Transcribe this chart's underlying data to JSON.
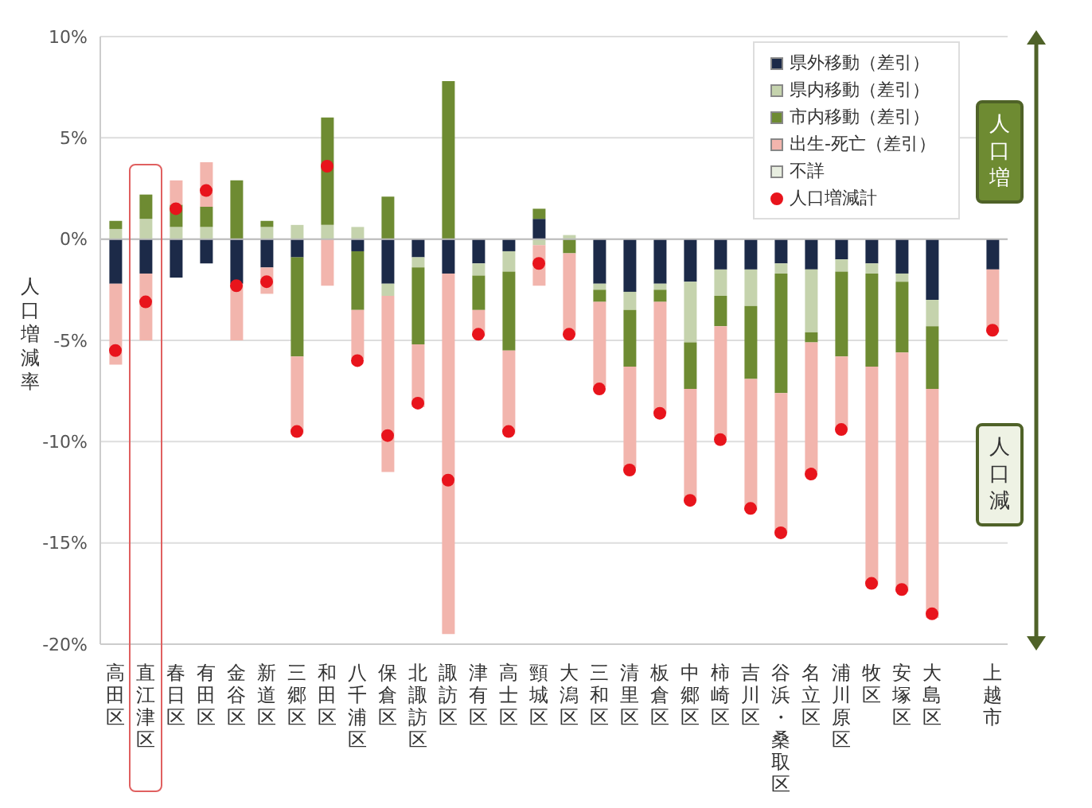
{
  "chart_data": {
    "type": "bar",
    "stacked": true,
    "ylabel": "人口増減率",
    "legend": "top right",
    "grid": "y",
    "marker": "circle",
    "ylim": [
      -20,
      10
    ],
    "yticks": [
      {
        "value": 10,
        "label": "10%"
      },
      {
        "value": 5,
        "label": "5%"
      },
      {
        "value": 0,
        "label": "0%"
      },
      {
        "value": -5,
        "label": "-5%"
      },
      {
        "value": -10,
        "label": "-10%"
      },
      {
        "value": -15,
        "label": "-15%"
      },
      {
        "value": -20,
        "label": "-20%"
      }
    ],
    "categories": [
      "高田区",
      "直江津区",
      "春日区",
      "有田区",
      "金谷区",
      "新道区",
      "三郷区",
      "和田区",
      "八千浦区",
      "保倉区",
      "北諏訪区",
      "諏訪区",
      "津有区",
      "高士区",
      "頸城区",
      "大潟区",
      "三和区",
      "清里区",
      "板倉区",
      "中郷区",
      "柿崎区",
      "吉川区",
      "谷浜・桑取区",
      "名立区",
      "浦川原区",
      "牧区",
      "安塚区",
      "大島区",
      null,
      "上越市"
    ],
    "series": [
      {
        "name": "県外移動（差引）",
        "color": "#1c2a48",
        "values": [
          -2.2,
          -1.7,
          -1.9,
          -1.2,
          -2.2,
          -1.4,
          -0.9,
          null,
          -0.6,
          -2.2,
          -0.9,
          -1.7,
          -1.2,
          -0.6,
          1.0,
          null,
          -2.2,
          -2.6,
          -2.2,
          -2.1,
          -1.5,
          -1.5,
          -1.2,
          -1.5,
          -1.0,
          -1.2,
          -1.7,
          -3.0,
          null,
          -1.5
        ]
      },
      {
        "name": "県内移動（差引）",
        "color": "#c5d3ad",
        "values": [
          0.5,
          1.0,
          0.6,
          0.6,
          null,
          0.6,
          0.7,
          0.7,
          0.6,
          -0.6,
          -0.5,
          null,
          -0.6,
          -1.0,
          -0.3,
          0.2,
          -0.3,
          -0.9,
          -0.3,
          -3.0,
          -1.3,
          -1.8,
          -0.5,
          -3.1,
          -0.6,
          -0.5,
          -0.4,
          -1.3,
          null,
          null
        ]
      },
      {
        "name": "市内移動（差引）",
        "color": "#6e8b32",
        "values": [
          0.4,
          1.2,
          1.1,
          1.0,
          2.9,
          0.3,
          -4.9,
          5.3,
          -2.9,
          2.1,
          -3.8,
          7.8,
          -1.7,
          -3.9,
          0.5,
          -0.7,
          -0.6,
          -2.8,
          -0.6,
          -2.3,
          -1.5,
          -3.6,
          -5.9,
          -0.5,
          -4.2,
          -4.6,
          -3.5,
          -3.1,
          null,
          null
        ]
      },
      {
        "name": "出生-死亡（差引）",
        "color": "#f2b5ad",
        "values": [
          -4.0,
          -3.3,
          1.2,
          2.2,
          -2.8,
          -1.3,
          -3.8,
          -2.3,
          -2.4,
          -8.7,
          -3.1,
          -17.8,
          -1.3,
          -4.1,
          -2.0,
          -4.0,
          -4.2,
          -5.0,
          -5.5,
          -5.5,
          -5.5,
          -6.5,
          -6.9,
          -6.4,
          -3.6,
          -10.8,
          -11.8,
          -11.3,
          null,
          -3.1
        ]
      },
      {
        "name": "不詳",
        "color": "#e8eee0",
        "values": [
          null,
          null,
          null,
          null,
          null,
          null,
          null,
          null,
          null,
          null,
          null,
          null,
          null,
          null,
          null,
          null,
          null,
          null,
          null,
          null,
          null,
          null,
          null,
          null,
          null,
          null,
          null,
          null,
          null,
          null
        ]
      },
      {
        "name": "人口増減計",
        "type": "scatter",
        "color": "#e8141c",
        "values": [
          -5.5,
          -3.1,
          1.5,
          2.4,
          -2.3,
          -2.1,
          -9.5,
          3.6,
          -6.0,
          -9.7,
          -8.1,
          -11.9,
          -4.7,
          -9.5,
          -1.2,
          -4.7,
          -7.4,
          -11.4,
          -8.6,
          -12.9,
          -9.9,
          -13.3,
          -14.5,
          -11.6,
          -9.4,
          -17.0,
          -17.3,
          -18.5,
          null,
          -4.5
        ]
      }
    ],
    "annotations": [
      "人口増",
      "人口減"
    ]
  }
}
